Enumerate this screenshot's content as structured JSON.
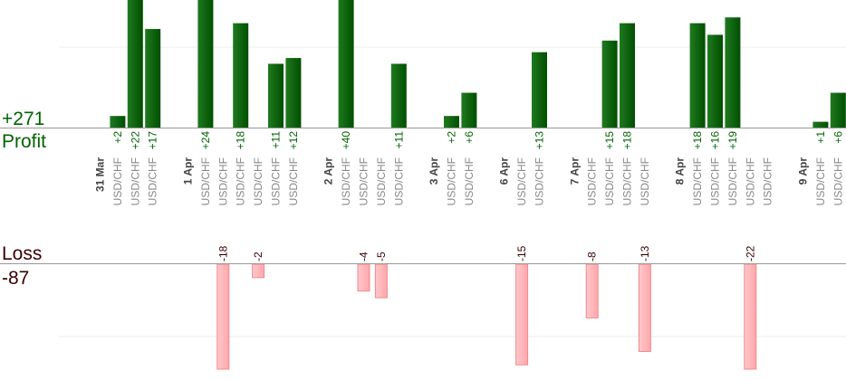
{
  "summary": {
    "profit_total": "+271",
    "profit_label": "Profit",
    "loss_label": "Loss",
    "loss_total": "-87"
  },
  "colors": {
    "profit_bar": "#006400",
    "profit_bar_light": "#1f8a1f",
    "profit_text": "#006400",
    "loss_bar": "#ffb6b9",
    "loss_bar_stroke": "#f08a8f",
    "loss_text": "#3a0000",
    "axis": "#999999",
    "grid": "#eeeeee",
    "column_label": "#888888",
    "date_label": "#444444"
  },
  "chart_data": {
    "type": "bar",
    "title": "",
    "xlabel": "",
    "ylabel": "",
    "profit_scale_max": 22,
    "loss_scale_max": 15.5,
    "columns": [
      {
        "label": "31 Mar",
        "kind": "date",
        "value": null
      },
      {
        "label": "USD/CHF",
        "kind": "pair",
        "value": 2
      },
      {
        "label": "USD/CHF",
        "kind": "pair",
        "value": 22
      },
      {
        "label": "USD/CHF",
        "kind": "pair",
        "value": 17
      },
      {
        "label": "",
        "kind": "gap",
        "value": null
      },
      {
        "label": "1 Apr",
        "kind": "date",
        "value": null
      },
      {
        "label": "USD/CHF",
        "kind": "pair",
        "value": 24
      },
      {
        "label": "USD/CHF",
        "kind": "pair",
        "value": -18
      },
      {
        "label": "USD/CHF",
        "kind": "pair",
        "value": 18
      },
      {
        "label": "USD/CHF",
        "kind": "pair",
        "value": -2
      },
      {
        "label": "USD/CHF",
        "kind": "pair",
        "value": 11
      },
      {
        "label": "USD/CHF",
        "kind": "pair",
        "value": 12
      },
      {
        "label": "",
        "kind": "gap",
        "value": null
      },
      {
        "label": "2 Apr",
        "kind": "date",
        "value": null
      },
      {
        "label": "USD/CHF",
        "kind": "pair",
        "value": 40
      },
      {
        "label": "USD/CHF",
        "kind": "pair",
        "value": -4
      },
      {
        "label": "USD/CHF",
        "kind": "pair",
        "value": -5
      },
      {
        "label": "USD/CHF",
        "kind": "pair",
        "value": 11
      },
      {
        "label": "",
        "kind": "gap",
        "value": null
      },
      {
        "label": "3 Apr",
        "kind": "date",
        "value": null
      },
      {
        "label": "USD/CHF",
        "kind": "pair",
        "value": 2
      },
      {
        "label": "USD/CHF",
        "kind": "pair",
        "value": 6
      },
      {
        "label": "",
        "kind": "gap",
        "value": null
      },
      {
        "label": "6 Apr",
        "kind": "date",
        "value": null
      },
      {
        "label": "USD/CHF",
        "kind": "pair",
        "value": -15
      },
      {
        "label": "USD/CHF",
        "kind": "pair",
        "value": 13
      },
      {
        "label": "",
        "kind": "gap",
        "value": null
      },
      {
        "label": "7 Apr",
        "kind": "date",
        "value": null
      },
      {
        "label": "USD/CHF",
        "kind": "pair",
        "value": -8
      },
      {
        "label": "USD/CHF",
        "kind": "pair",
        "value": 15
      },
      {
        "label": "USD/CHF",
        "kind": "pair",
        "value": 18
      },
      {
        "label": "USD/CHF",
        "kind": "pair",
        "value": -13
      },
      {
        "label": "",
        "kind": "gap",
        "value": null
      },
      {
        "label": "8 Apr",
        "kind": "date",
        "value": null
      },
      {
        "label": "USD/CHF",
        "kind": "pair",
        "value": 18
      },
      {
        "label": "USD/CHF",
        "kind": "pair",
        "value": 16
      },
      {
        "label": "USD/CHF",
        "kind": "pair",
        "value": 19
      },
      {
        "label": "USD/CHF",
        "kind": "pair",
        "value": -22
      },
      {
        "label": "USD/CHF",
        "kind": "pair",
        "value": null
      },
      {
        "label": "",
        "kind": "gap",
        "value": null
      },
      {
        "label": "9 Apr",
        "kind": "date",
        "value": null
      },
      {
        "label": "USD/CHF",
        "kind": "pair",
        "value": 1
      },
      {
        "label": "USD/CHF",
        "kind": "pair",
        "value": 6
      }
    ]
  }
}
